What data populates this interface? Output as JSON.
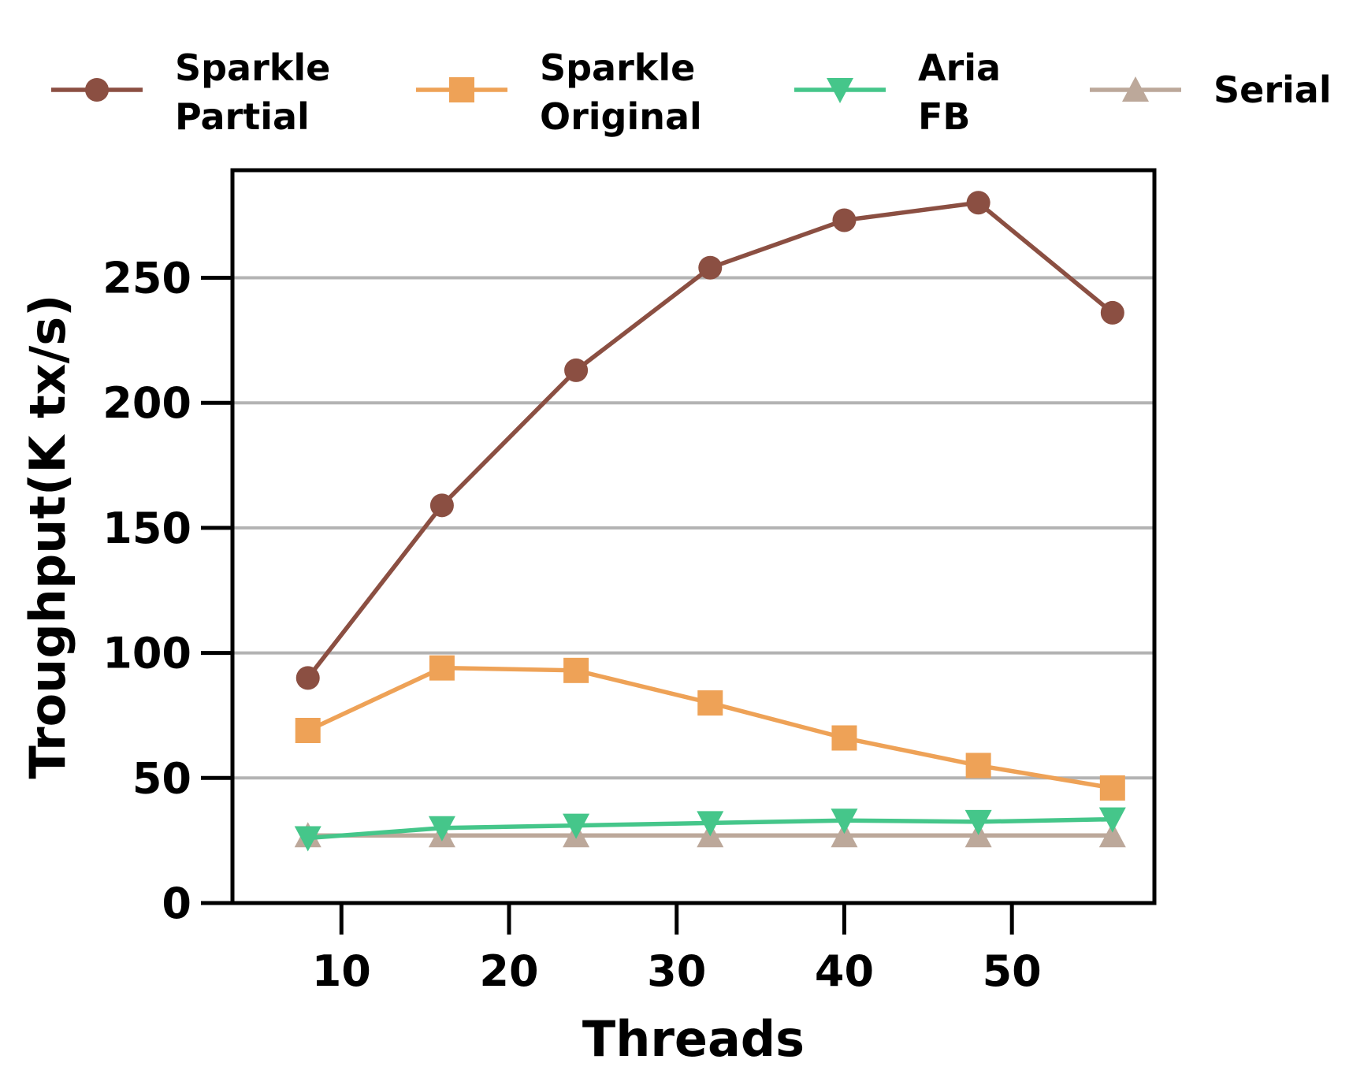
{
  "chart_data": {
    "type": "line",
    "xlabel": "Threads",
    "ylabel": "Troughput(K tx/s)",
    "x": [
      8,
      16,
      24,
      32,
      40,
      48,
      56
    ],
    "xlim": [
      3.5,
      58.5
    ],
    "ylim": [
      0,
      293
    ],
    "xticks": [
      "10",
      "20",
      "30",
      "40",
      "50"
    ],
    "xtick_values": [
      10,
      20,
      30,
      40,
      50
    ],
    "yticks": [
      "0",
      "50",
      "100",
      "150",
      "200",
      "250"
    ],
    "ytick_values": [
      0,
      50,
      100,
      150,
      200,
      250
    ],
    "grid": "horizontal",
    "legend_position": "top",
    "series": [
      {
        "name": "Sparkle Partial",
        "label_lines": [
          "Sparkle",
          "Partial"
        ],
        "color": "#8B4F42",
        "marker": "circle",
        "values": [
          90,
          159,
          213,
          254,
          273,
          280,
          236
        ]
      },
      {
        "name": "Sparkle Original",
        "label_lines": [
          "Sparkle",
          "Original"
        ],
        "color": "#EEA257",
        "marker": "square",
        "values": [
          69,
          94,
          93,
          80,
          66,
          55,
          46
        ]
      },
      {
        "name": "Aria FB",
        "label_lines": [
          "Aria",
          "FB"
        ],
        "color": "#45C68A",
        "marker": "triangle-down",
        "values": [
          26,
          30,
          31,
          32,
          33,
          32.5,
          33.5
        ]
      },
      {
        "name": "Serial",
        "label_lines": [
          "Serial"
        ],
        "color": "#BCA89A",
        "marker": "triangle-up",
        "values": [
          27,
          27,
          27,
          27,
          27,
          27,
          27
        ]
      }
    ]
  }
}
